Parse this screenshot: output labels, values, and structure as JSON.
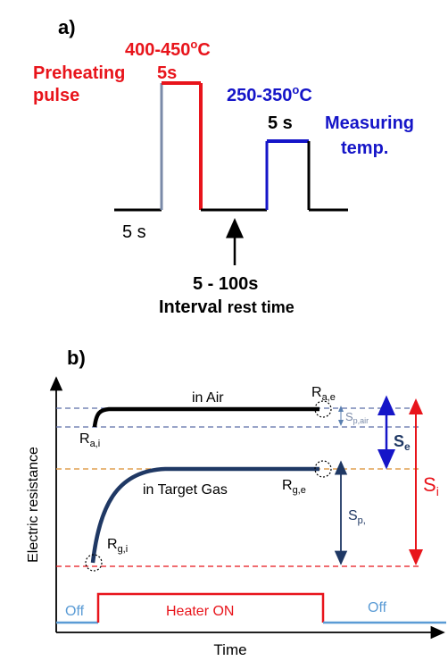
{
  "panel_a": {
    "label": "a)",
    "preheat_temp": "400-450",
    "preheat_temp_sup": "o",
    "preheat_temp_unit": "C",
    "preheat_line1": "Preheating",
    "preheat_duration": "5s",
    "preheat_line2": "pulse",
    "measure_temp": "250-350",
    "measure_temp_sup": "o",
    "measure_temp_unit": "C",
    "measure_duration": "5 s",
    "measure_line1": "Measuring",
    "measure_line2": "temp.",
    "baseline_duration": "5 s",
    "interval_value": "5 - 100s",
    "interval_label_bold": "Interval ",
    "interval_label_rest": "rest time",
    "colors": {
      "preheat": "#e8141b",
      "measure": "#1515c8",
      "baseline": "#000000"
    }
  },
  "panel_b": {
    "label": "b)",
    "y_axis_label": "Electric resistance",
    "x_axis_label": "Time",
    "air_label": "in Air",
    "gas_label": "in Target Gas",
    "heater_on": "Heater ON",
    "off_left": "Off",
    "off_right": "Off",
    "r_a_i": "R",
    "r_a_i_sub": "a,i",
    "r_a_e": "R",
    "r_a_e_sub": "a,e",
    "r_g_i": "R",
    "r_g_i_sub": "g,i",
    "r_g_e": "R",
    "r_g_e_sub": "g,e",
    "s_p_air": "S",
    "s_p_air_sub": "p,air",
    "s_e": "S",
    "s_e_sub": "e",
    "s_i": "S",
    "s_i_sub": "i",
    "s_p": "S",
    "s_p_sub": "p,",
    "colors": {
      "heater": "#e8141b",
      "off": "#5a9bd5",
      "curve": "#1f3864",
      "si": "#e8141b",
      "se": "#1515c8",
      "sp": "#1f3864"
    }
  }
}
